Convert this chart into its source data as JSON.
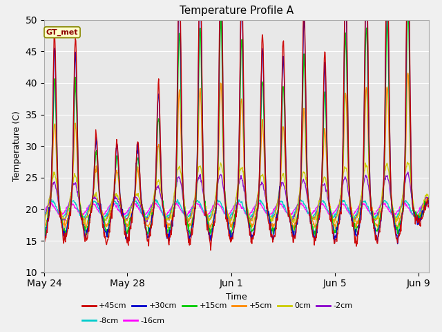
{
  "title": "Temperature Profile A",
  "xlabel": "Time",
  "ylabel": "Temperature (C)",
  "ylim": [
    10,
    50
  ],
  "xlim_days": 18.5,
  "annotation": "GT_met",
  "series": [
    {
      "label": "+45cm",
      "color": "#cc0000",
      "lw": 1.0
    },
    {
      "label": "+30cm",
      "color": "#0000cc",
      "lw": 1.0
    },
    {
      "label": "+15cm",
      "color": "#00cc00",
      "lw": 1.0
    },
    {
      "label": "+5cm",
      "color": "#ff8800",
      "lw": 1.0
    },
    {
      "label": "0cm",
      "color": "#cccc00",
      "lw": 1.0
    },
    {
      "label": "-2cm",
      "color": "#8800cc",
      "lw": 1.0
    },
    {
      "label": "-8cm",
      "color": "#00cccc",
      "lw": 1.0
    },
    {
      "label": "-16cm",
      "color": "#ff00ff",
      "lw": 1.0
    }
  ],
  "xtick_labels": [
    "May 24",
    "May 28",
    "Jun 1",
    "Jun 5",
    "Jun 9"
  ],
  "xtick_positions": [
    0,
    4,
    9,
    14,
    18
  ],
  "ytick_positions": [
    10,
    15,
    20,
    25,
    30,
    35,
    40,
    45,
    50
  ],
  "plot_bg_color": "#e8e8e8",
  "fig_bg_color": "#f0f0f0",
  "spike_amplitudes": [
    27,
    26,
    11,
    10,
    10,
    19,
    38,
    39,
    41,
    36,
    27,
    26,
    32,
    24,
    37,
    39,
    40,
    44
  ],
  "seed": 7
}
